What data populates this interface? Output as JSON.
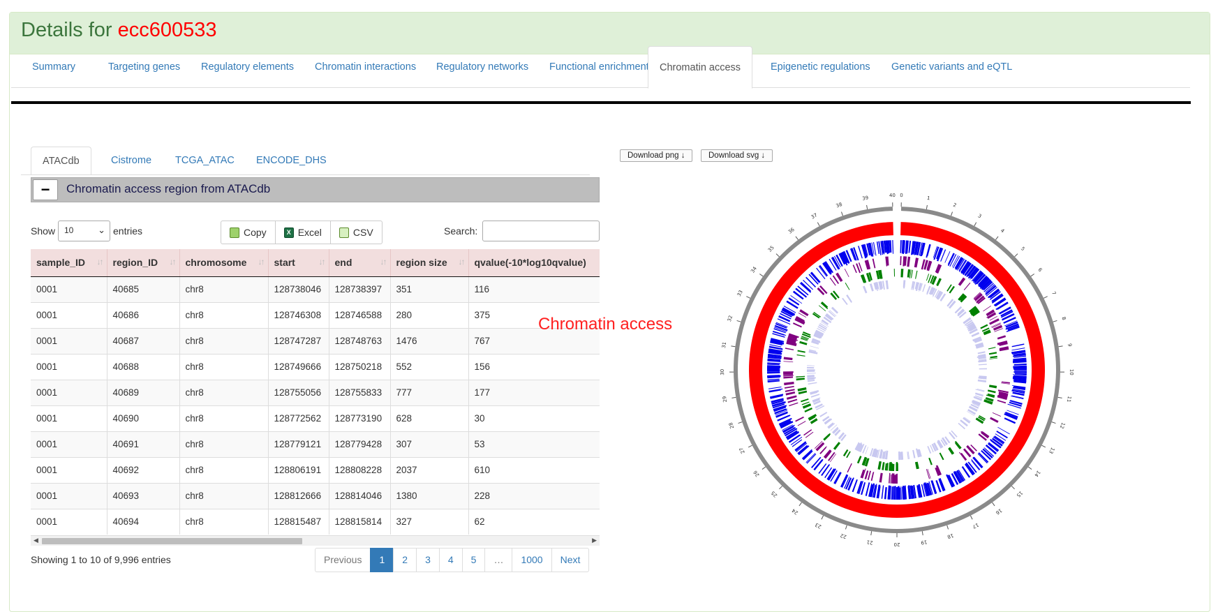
{
  "header": {
    "title_prefix": "Details for ",
    "accession": "ecc600533"
  },
  "main_tabs": [
    "Summary",
    "Targeting genes",
    "Regulatory elements",
    "Chromatin interactions",
    "Regulatory networks",
    "Functional enrichment",
    "Chromatin access",
    "Epigenetic regulations",
    "Genetic variants and eQTL"
  ],
  "main_tab_active": "Chromatin access",
  "sub_tabs": [
    "ATACdb",
    "Cistrome",
    "TCGA_ATAC",
    "ENCODE_DHS"
  ],
  "sub_tab_active": "ATACdb",
  "section": {
    "collapse_symbol": "−",
    "title": "Chromatin access region from ATACdb"
  },
  "controls": {
    "show_label": "Show",
    "entries_label": "entries",
    "page_length": "10",
    "copy_label": "Copy",
    "excel_label": "Excel",
    "csv_label": "CSV",
    "search_label": "Search:",
    "search_value": ""
  },
  "table": {
    "columns": [
      "sample_ID",
      "region_ID",
      "chromosome",
      "start",
      "end",
      "region size",
      "qvalue(-10*log10qvalue)"
    ],
    "rows": [
      [
        "0001",
        "40685",
        "chr8",
        "128738046",
        "128738397",
        "351",
        "116"
      ],
      [
        "0001",
        "40686",
        "chr8",
        "128746308",
        "128746588",
        "280",
        "375"
      ],
      [
        "0001",
        "40687",
        "chr8",
        "128747287",
        "128748763",
        "1476",
        "767"
      ],
      [
        "0001",
        "40688",
        "chr8",
        "128749666",
        "128750218",
        "552",
        "156"
      ],
      [
        "0001",
        "40689",
        "chr8",
        "128755056",
        "128755833",
        "777",
        "177"
      ],
      [
        "0001",
        "40690",
        "chr8",
        "128772562",
        "128773190",
        "628",
        "30"
      ],
      [
        "0001",
        "40691",
        "chr8",
        "128779121",
        "128779428",
        "307",
        "53"
      ],
      [
        "0001",
        "40692",
        "chr8",
        "128806191",
        "128808228",
        "2037",
        "610"
      ],
      [
        "0001",
        "40693",
        "chr8",
        "128812666",
        "128814046",
        "1380",
        "228"
      ],
      [
        "0001",
        "40694",
        "chr8",
        "128815487",
        "128815814",
        "327",
        "62"
      ]
    ]
  },
  "info_text": "Showing 1 to 10 of 9,996 entries",
  "pagination": {
    "prev": "Previous",
    "pages": [
      "1",
      "2",
      "3",
      "4",
      "5",
      "…",
      "1000"
    ],
    "active": "1",
    "next": "Next"
  },
  "chart": {
    "caption": "Chromatin access",
    "download_png": "Download png ↓",
    "download_svg": "Download svg ↓",
    "axis_ticks": [
      "0",
      "1",
      "2",
      "3",
      "4",
      "5",
      "6",
      "7",
      "8",
      "9",
      "10",
      "11",
      "12",
      "13",
      "14",
      "15",
      "16",
      "17",
      "18",
      "19",
      "20",
      "21",
      "22",
      "23",
      "24",
      "25",
      "26",
      "27",
      "28",
      "29",
      "30",
      "31",
      "32",
      "33",
      "34",
      "35",
      "36",
      "37",
      "38",
      "39",
      "40"
    ],
    "colors": {
      "outer_ring": "#ff0000",
      "track1": "#0000ee",
      "track2": "#800080",
      "track3": "#008000",
      "track4": "#c8c8f0",
      "axis": "#8a8a8a"
    }
  }
}
